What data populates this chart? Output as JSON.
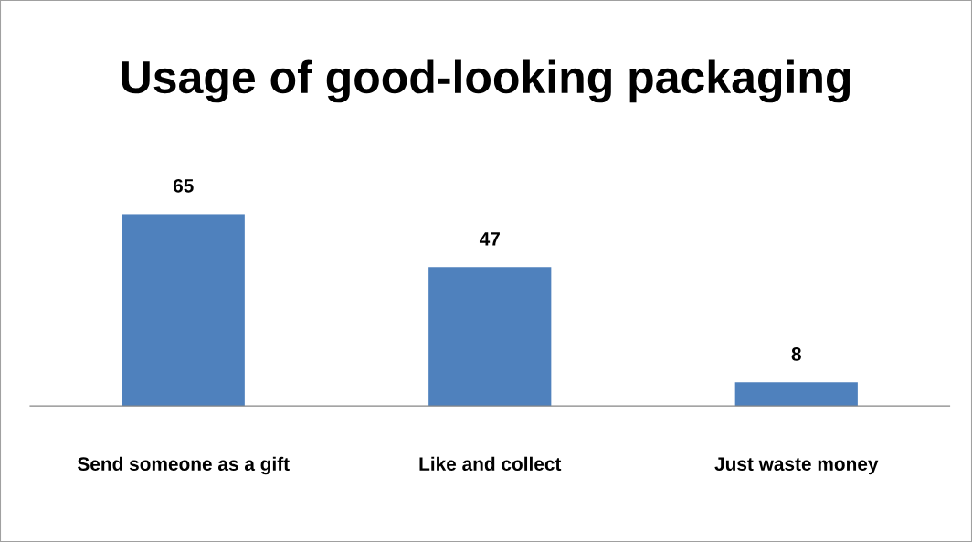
{
  "chart_data": {
    "type": "bar",
    "title": "Usage of good-looking packaging",
    "categories": [
      "Send someone as a gift",
      "Like and collect",
      "Just waste money"
    ],
    "values": [
      65,
      47,
      8
    ],
    "color": "#4f81bd",
    "data_labels": true,
    "grid": false,
    "legend": false
  }
}
